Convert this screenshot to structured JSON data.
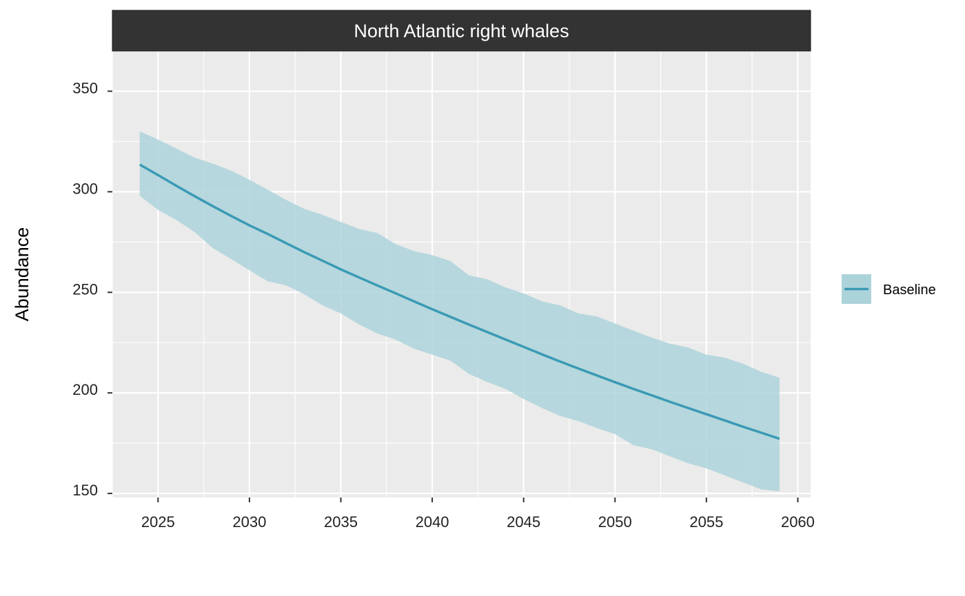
{
  "chart_data": {
    "type": "line",
    "title": "North Atlantic right whales",
    "xlabel": "",
    "ylabel": "Abundance",
    "xlim": [
      2022.5,
      2060.7
    ],
    "ylim": [
      148,
      370
    ],
    "x_ticks": [
      2025,
      2030,
      2035,
      2040,
      2045,
      2050,
      2055,
      2060
    ],
    "y_ticks": [
      150,
      200,
      250,
      300,
      350
    ],
    "grid": true,
    "legend_position": "right",
    "colors": {
      "line": "#3a9ab5",
      "ribbon": "#add3da",
      "panel": "#ebebeb",
      "strip": "#333333",
      "grid": "#ffffff"
    },
    "x": [
      2024,
      2025,
      2026,
      2027,
      2028,
      2029,
      2030,
      2031,
      2032,
      2033,
      2034,
      2035,
      2036,
      2037,
      2038,
      2039,
      2040,
      2041,
      2042,
      2043,
      2044,
      2045,
      2046,
      2047,
      2048,
      2049,
      2050,
      2051,
      2052,
      2053,
      2054,
      2055,
      2056,
      2057,
      2058,
      2059
    ],
    "series": [
      {
        "name": "Baseline",
        "values": [
          313.5,
          308.3,
          303.0,
          297.8,
          292.8,
          288.0,
          283.3,
          279.0,
          274.5,
          270.0,
          265.7,
          261.4,
          257.4,
          253.4,
          249.5,
          245.5,
          241.6,
          237.8,
          234.0,
          230.3,
          226.6,
          222.9,
          219.2,
          215.6,
          212.1,
          208.7,
          205.3,
          202.0,
          198.8,
          195.6,
          192.5,
          189.4,
          186.3,
          183.2,
          180.2,
          177.2
        ],
        "lower": [
          298.0,
          291.0,
          286.0,
          280.0,
          272.0,
          266.5,
          261.0,
          255.5,
          253.5,
          249.0,
          243.5,
          239.5,
          234.0,
          229.5,
          226.5,
          222.0,
          219.0,
          216.0,
          209.5,
          205.5,
          202.0,
          197.0,
          192.5,
          188.5,
          186.0,
          182.5,
          179.5,
          174.0,
          172.0,
          168.5,
          165.0,
          162.5,
          159.0,
          155.5,
          152.0,
          151.0
        ],
        "upper": [
          330.0,
          326.0,
          321.5,
          317.0,
          314.0,
          310.5,
          306.0,
          301.0,
          296.0,
          291.5,
          288.5,
          285.0,
          281.5,
          279.5,
          274.0,
          270.5,
          268.5,
          265.5,
          258.5,
          256.5,
          252.5,
          249.5,
          245.5,
          243.5,
          239.5,
          238.0,
          234.5,
          231.0,
          227.5,
          224.5,
          222.5,
          219.0,
          217.5,
          214.5,
          210.5,
          207.5
        ]
      }
    ],
    "legend": {
      "entries": [
        "Baseline"
      ]
    }
  }
}
